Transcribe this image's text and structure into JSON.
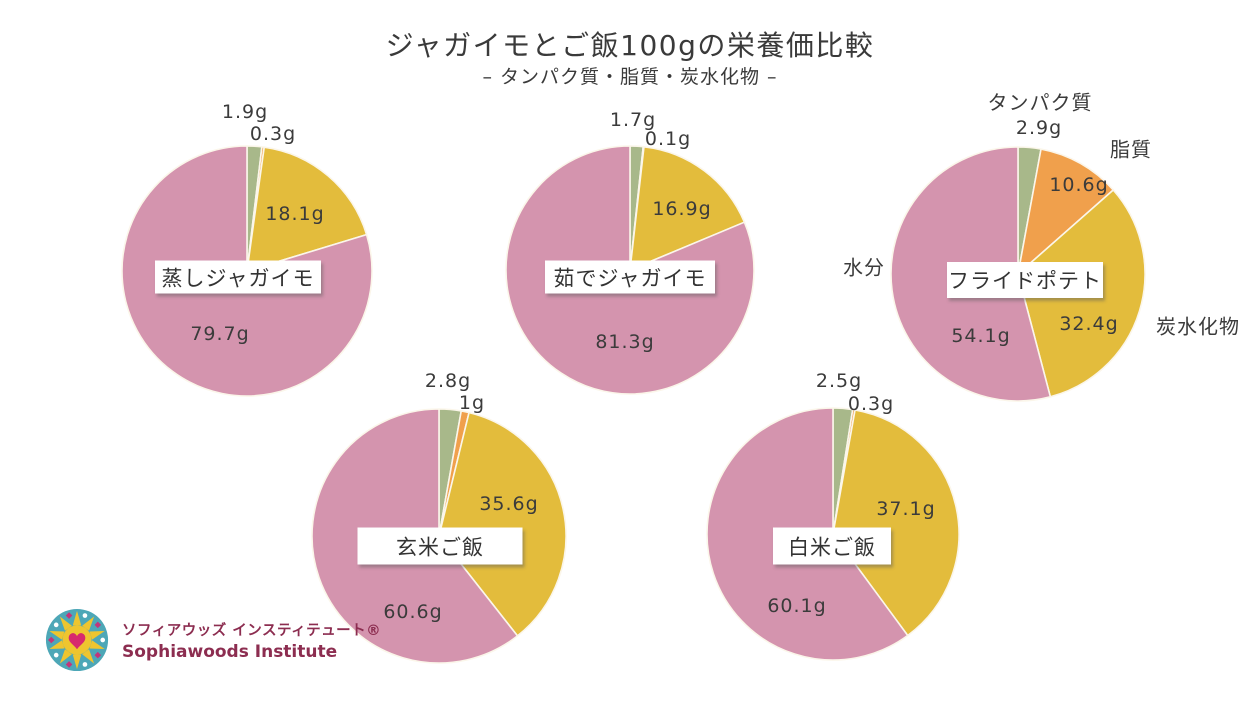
{
  "title": "ジャガイモとご飯100gの栄養価比較",
  "subtitle": "– タンパク質・脂質・炭水化物 –",
  "chart_data": {
    "type": "pie",
    "count": 5,
    "note": "each pie totals 100 g; slices start at 12 o'clock, clockwise: protein, fat, carbohydrate, water",
    "categories": [
      "タンパク質",
      "脂質",
      "炭水化物",
      "水分"
    ],
    "category_keys": [
      "protein",
      "fat",
      "carbohydrate",
      "water"
    ],
    "slice_colors": [
      "#a8b88a",
      "#f0a04c",
      "#e3bc3c",
      "#d494ae"
    ],
    "pies": [
      {
        "name": "蒸しジャガイモ",
        "values": [
          1.9,
          0.3,
          18.1,
          79.7
        ],
        "labels": [
          "1.9g",
          "0.3g",
          "18.1g",
          "79.7g"
        ]
      },
      {
        "name": "茹でジャガイモ",
        "values": [
          1.7,
          0.1,
          16.9,
          81.3
        ],
        "labels": [
          "1.7g",
          "0.1g",
          "16.9g",
          "81.3g"
        ]
      },
      {
        "name": "フライドポテト",
        "values": [
          2.9,
          10.6,
          32.4,
          54.1
        ],
        "labels": [
          "2.9g",
          "10.6g",
          "32.4g",
          "54.1g"
        ]
      },
      {
        "name": "玄米ご飯",
        "values": [
          2.8,
          1,
          35.6,
          60.6
        ],
        "labels": [
          "2.8g",
          "1g",
          "35.6g",
          "60.6g"
        ]
      },
      {
        "name": "白米ご飯",
        "values": [
          2.5,
          0.3,
          37.1,
          60.1
        ],
        "labels": [
          "2.5g",
          "0.3g",
          "37.1g",
          "60.1g"
        ]
      }
    ],
    "legend": {
      "position": "around フライドポテト pie",
      "entries": [
        "タンパク質",
        "脂質",
        "炭水化物",
        "水分"
      ]
    }
  },
  "logo": {
    "line1": "ソフィアウッズ インスティテュート®",
    "line2": "Sophiawoods Institute",
    "text_color": "#8c2d50"
  }
}
